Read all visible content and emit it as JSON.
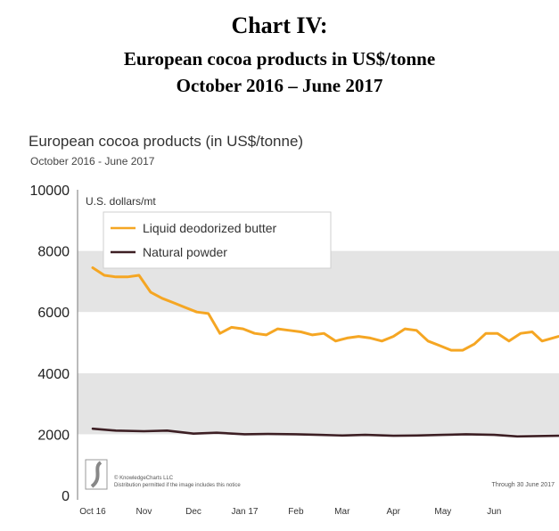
{
  "header": {
    "line1": "Chart IV:",
    "line2": "European cocoa products in US$/tonne",
    "line3": "October 2016 – June 2017"
  },
  "chart_data": {
    "type": "line",
    "title": "European cocoa products (in US$/tonne)",
    "subtitle": "October 2016 - June 2017",
    "ylabel": "U.S. dollars/mt",
    "xlabel": "",
    "ylim": [
      0,
      10000
    ],
    "yticks": [
      0,
      2000,
      4000,
      6000,
      8000,
      10000
    ],
    "xlim": [
      "2016-10-01",
      "2017-06-30"
    ],
    "xticks": [
      {
        "label": "Oct 16",
        "date": "2016-10-01"
      },
      {
        "label": "Nov",
        "date": "2016-11-01"
      },
      {
        "label": "Dec",
        "date": "2016-12-01"
      },
      {
        "label": "Jan 17",
        "date": "2017-01-01"
      },
      {
        "label": "Feb",
        "date": "2017-02-01"
      },
      {
        "label": "Mar",
        "date": "2017-03-01"
      },
      {
        "label": "Apr",
        "date": "2017-04-01"
      },
      {
        "label": "May",
        "date": "2017-05-01"
      },
      {
        "label": "Jun",
        "date": "2017-06-01"
      }
    ],
    "legend_position": "top-left",
    "grid": "alternating horizontal bands",
    "source": "© KnowledgeCharts LLC",
    "notice": "Distribution permitted if the image includes this notice",
    "through": "Through 30 June 2017",
    "series": [
      {
        "name": "Liquid deodorized butter",
        "color": "#f5a623",
        "points": [
          [
            "2016-10-01",
            7450
          ],
          [
            "2016-10-08",
            7200
          ],
          [
            "2016-10-15",
            7150
          ],
          [
            "2016-10-22",
            7150
          ],
          [
            "2016-10-29",
            7200
          ],
          [
            "2016-11-05",
            6650
          ],
          [
            "2016-11-12",
            6450
          ],
          [
            "2016-11-19",
            6300
          ],
          [
            "2016-11-26",
            6150
          ],
          [
            "2016-12-03",
            6000
          ],
          [
            "2016-12-10",
            5950
          ],
          [
            "2016-12-17",
            5300
          ],
          [
            "2016-12-24",
            5500
          ],
          [
            "2016-12-31",
            5450
          ],
          [
            "2017-01-07",
            5300
          ],
          [
            "2017-01-14",
            5250
          ],
          [
            "2017-01-21",
            5450
          ],
          [
            "2017-01-28",
            5400
          ],
          [
            "2017-02-04",
            5350
          ],
          [
            "2017-02-11",
            5250
          ],
          [
            "2017-02-18",
            5300
          ],
          [
            "2017-02-25",
            5050
          ],
          [
            "2017-03-04",
            5150
          ],
          [
            "2017-03-11",
            5200
          ],
          [
            "2017-03-18",
            5150
          ],
          [
            "2017-03-25",
            5050
          ],
          [
            "2017-04-01",
            5200
          ],
          [
            "2017-04-08",
            5450
          ],
          [
            "2017-04-15",
            5400
          ],
          [
            "2017-04-22",
            5050
          ],
          [
            "2017-04-29",
            4900
          ],
          [
            "2017-05-06",
            4750
          ],
          [
            "2017-05-13",
            4750
          ],
          [
            "2017-05-20",
            4950
          ],
          [
            "2017-05-27",
            5300
          ],
          [
            "2017-06-03",
            5300
          ],
          [
            "2017-06-10",
            5050
          ],
          [
            "2017-06-17",
            5300
          ],
          [
            "2017-06-24",
            5350
          ],
          [
            "2017-06-30",
            5050
          ],
          [
            "2017-07-10",
            5200
          ]
        ]
      },
      {
        "name": "Natural powder",
        "color": "#3d1f24",
        "points": [
          [
            "2016-10-01",
            2180
          ],
          [
            "2016-10-15",
            2120
          ],
          [
            "2016-11-01",
            2100
          ],
          [
            "2016-11-15",
            2120
          ],
          [
            "2016-12-01",
            2020
          ],
          [
            "2016-12-15",
            2050
          ],
          [
            "2017-01-01",
            2000
          ],
          [
            "2017-01-15",
            2010
          ],
          [
            "2017-02-01",
            2000
          ],
          [
            "2017-02-15",
            1980
          ],
          [
            "2017-03-01",
            1960
          ],
          [
            "2017-03-15",
            1980
          ],
          [
            "2017-04-01",
            1950
          ],
          [
            "2017-04-15",
            1960
          ],
          [
            "2017-05-01",
            1980
          ],
          [
            "2017-05-15",
            2000
          ],
          [
            "2017-06-01",
            1980
          ],
          [
            "2017-06-15",
            1930
          ],
          [
            "2017-07-10",
            1950
          ]
        ]
      }
    ]
  }
}
